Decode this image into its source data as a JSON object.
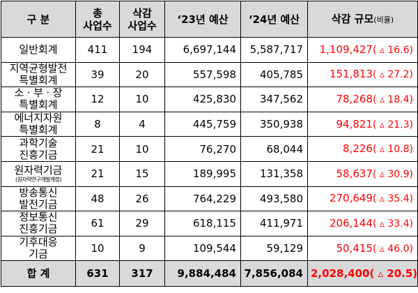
{
  "headers": {
    "category": "구 분",
    "total_line1": "총",
    "total_line2": "사업수",
    "cut_line1": "삭감",
    "cut_line2": "사업수",
    "budget23": "‘23년 예산",
    "budget24": "‘24년 예산",
    "scale": "삭감 규모",
    "scale_ratio": "(비율)"
  },
  "rows": [
    {
      "name1": "일반회계",
      "name2": "",
      "note": "",
      "total": "411",
      "cut": "194",
      "b23": "6,697,144",
      "b24": "5,587,717",
      "reduction": "1,109,427",
      "ratio": "( ▵ 16.6)"
    },
    {
      "name1": "지역균형발전",
      "name2": "특별회계",
      "note": "",
      "total": "39",
      "cut": "20",
      "b23": "557,598",
      "b24": "405,785",
      "reduction": "151,813",
      "ratio": "( ▵ 27.2)"
    },
    {
      "name1": "소ㆍ부ㆍ장",
      "name2": "특별회계",
      "note": "",
      "total": "12",
      "cut": "10",
      "b23": "425,830",
      "b24": "347,562",
      "reduction": "78,268",
      "ratio": "( ▵ 18.4)"
    },
    {
      "name1": "에너지자원",
      "name2": "특별회계",
      "note": "",
      "total": "8",
      "cut": "4",
      "b23": "445,759",
      "b24": "350,938",
      "reduction": "94,821",
      "ratio": "( ▵ 21.3)"
    },
    {
      "name1": "과학기술",
      "name2": "진흥기금",
      "note": "",
      "total": "21",
      "cut": "10",
      "b23": "76,270",
      "b24": "68,044",
      "reduction": "8,226",
      "ratio": "( ▵ 10.8)"
    },
    {
      "name1": "원자력기금",
      "name2": "",
      "note": "(원자력연구개발계정)",
      "total": "21",
      "cut": "15",
      "b23": "189,995",
      "b24": "131,358",
      "reduction": "58,637",
      "ratio": "( ▵ 30.9)"
    },
    {
      "name1": "방송통신",
      "name2": "발전기금",
      "note": "",
      "total": "48",
      "cut": "26",
      "b23": "764,229",
      "b24": "493,580",
      "reduction": "270,649",
      "ratio": "( ▵ 35.4)"
    },
    {
      "name1": "정보통신",
      "name2": "진흥기금",
      "note": "",
      "total": "61",
      "cut": "29",
      "b23": "618,115",
      "b24": "411,971",
      "reduction": "206,144",
      "ratio": "( ▵ 33.4)"
    },
    {
      "name1": "기후대응",
      "name2": "기금",
      "note": "",
      "total": "10",
      "cut": "9",
      "b23": "109,544",
      "b24": "59,129",
      "reduction": "50,415",
      "ratio": "( ▵ 46.0)"
    }
  ],
  "total": {
    "label": "합 계",
    "total": "631",
    "cut": "317",
    "b23": "9,884,484",
    "b24": "7,856,084",
    "reduction": "2,028,400",
    "ratio": "( ▵ 20.5)"
  },
  "colors": {
    "header_bg": "#d9d9d9",
    "reduction_text": "#ff0000"
  }
}
